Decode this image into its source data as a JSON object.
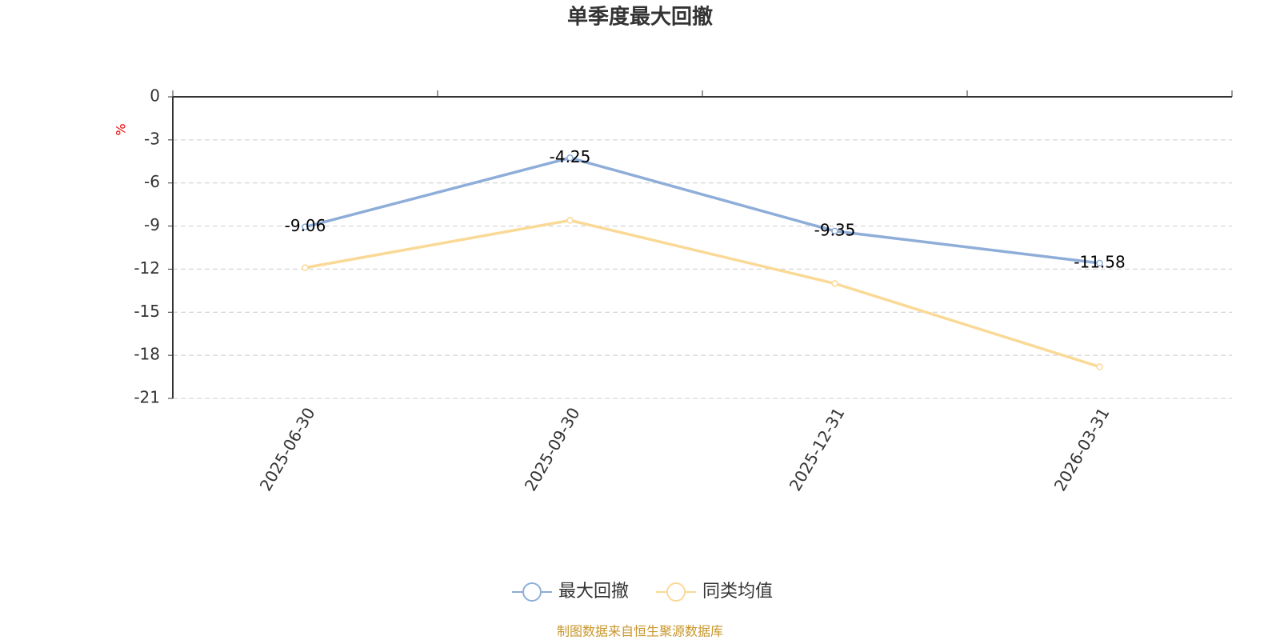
{
  "chart_data": {
    "type": "line",
    "title": "单季度最大回撤",
    "y_label": "%",
    "categories": [
      "2025-06-30",
      "2025-09-30",
      "2025-12-31",
      "2026-03-31"
    ],
    "series": [
      {
        "name": "最大回撤",
        "color": "#8eadd8",
        "values": [
          -9.06,
          -4.25,
          -9.35,
          -11.58
        ]
      },
      {
        "name": "同类均值",
        "color": "#fad996",
        "values": [
          -11.9,
          -8.6,
          -13.0,
          -18.8
        ]
      }
    ],
    "ylim": [
      -21,
      0
    ],
    "yticks": [
      0,
      -3,
      -6,
      -9,
      -12,
      -15,
      -18,
      -21
    ],
    "grid": true,
    "data_labels_series": 0,
    "source": "制图数据来自恒生聚源数据库"
  }
}
